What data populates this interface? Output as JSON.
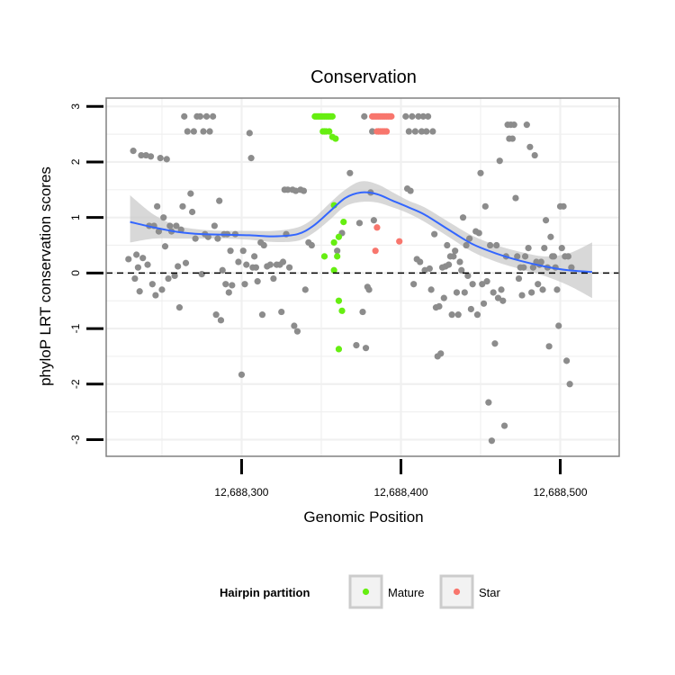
{
  "chart_data": {
    "type": "scatter",
    "title": "Conservation",
    "xlabel": "Genomic Position",
    "ylabel": "phyloP LRT conservation scores",
    "xlim": [
      12688215,
      12688537
    ],
    "ylim": [
      -3.3,
      3.15
    ],
    "x_ticks": [
      {
        "value": 12688300,
        "label": "12,688,300"
      },
      {
        "value": 12688400,
        "label": "12,688,400"
      },
      {
        "value": 12688500,
        "label": "12,688,500"
      }
    ],
    "y_ticks": [
      {
        "value": -3,
        "label": "-3"
      },
      {
        "value": -2,
        "label": "-2"
      },
      {
        "value": -1,
        "label": "-1"
      },
      {
        "value": 0,
        "label": "0"
      },
      {
        "value": 1,
        "label": "1"
      },
      {
        "value": 2,
        "label": "2"
      },
      {
        "value": 3,
        "label": "3"
      }
    ],
    "reference_line": {
      "y": 0,
      "style": "dashed",
      "color": "#000000"
    },
    "colors": {
      "other": "#8c8c8c",
      "Mature": "#66ee11",
      "Star": "#f8766d",
      "smooth": "#3366ff",
      "ribbon": "#c8c8c8",
      "grid": "#f0f0f0",
      "frame": "#808080"
    },
    "legend": {
      "title": "Hairpin partition",
      "entries": [
        "Mature",
        "Star"
      ],
      "position": "bottom"
    },
    "series": [
      {
        "name": "Other",
        "points": [
          [
            12688229,
            0.25
          ],
          [
            12688232,
            2.2
          ],
          [
            12688233,
            -0.1
          ],
          [
            12688234,
            0.33
          ],
          [
            12688235,
            0.1
          ],
          [
            12688236,
            -0.33
          ],
          [
            12688237,
            2.12
          ],
          [
            12688238,
            0.27
          ],
          [
            12688240,
            2.12
          ],
          [
            12688241,
            0.15
          ],
          [
            12688242,
            0.85
          ],
          [
            12688243,
            2.1
          ],
          [
            12688244,
            -0.2
          ],
          [
            12688245,
            0.85
          ],
          [
            12688246,
            -0.4
          ],
          [
            12688247,
            1.2
          ],
          [
            12688248,
            0.75
          ],
          [
            12688249,
            2.07
          ],
          [
            12688250,
            -0.3
          ],
          [
            12688251,
            1.0
          ],
          [
            12688252,
            0.48
          ],
          [
            12688253,
            2.05
          ],
          [
            12688254,
            -0.1
          ],
          [
            12688255,
            0.85
          ],
          [
            12688256,
            0.75
          ],
          [
            12688258,
            -0.05
          ],
          [
            12688259,
            0.85
          ],
          [
            12688260,
            0.12
          ],
          [
            12688261,
            -0.62
          ],
          [
            12688262,
            0.78
          ],
          [
            12688263,
            1.2
          ],
          [
            12688264,
            2.82
          ],
          [
            12688265,
            0.18
          ],
          [
            12688266,
            2.55
          ],
          [
            12688268,
            1.43
          ],
          [
            12688269,
            1.1
          ],
          [
            12688270,
            2.55
          ],
          [
            12688271,
            0.62
          ],
          [
            12688272,
            2.82
          ],
          [
            12688274,
            2.82
          ],
          [
            12688275,
            -0.02
          ],
          [
            12688276,
            2.55
          ],
          [
            12688277,
            0.7
          ],
          [
            12688278,
            2.82
          ],
          [
            12688279,
            0.65
          ],
          [
            12688280,
            2.55
          ],
          [
            12688282,
            2.82
          ],
          [
            12688283,
            0.85
          ],
          [
            12688284,
            -0.75
          ],
          [
            12688285,
            0.62
          ],
          [
            12688286,
            1.3
          ],
          [
            12688287,
            -0.85
          ],
          [
            12688288,
            0.05
          ],
          [
            12688289,
            0.7
          ],
          [
            12688290,
            -0.2
          ],
          [
            12688291,
            0.7
          ],
          [
            12688292,
            -0.35
          ],
          [
            12688293,
            0.4
          ],
          [
            12688294,
            -0.22
          ],
          [
            12688296,
            0.7
          ],
          [
            12688298,
            0.2
          ],
          [
            12688300,
            -1.83
          ],
          [
            12688301,
            0.4
          ],
          [
            12688302,
            -0.2
          ],
          [
            12688303,
            0.15
          ],
          [
            12688305,
            2.52
          ],
          [
            12688306,
            2.07
          ],
          [
            12688307,
            0.1
          ],
          [
            12688308,
            0.3
          ],
          [
            12688309,
            0.1
          ],
          [
            12688310,
            -0.15
          ],
          [
            12688312,
            0.55
          ],
          [
            12688313,
            -0.75
          ],
          [
            12688314,
            0.5
          ],
          [
            12688316,
            0.12
          ],
          [
            12688318,
            0.15
          ],
          [
            12688320,
            -0.1
          ],
          [
            12688322,
            0.15
          ],
          [
            12688324,
            0.15
          ],
          [
            12688325,
            -0.7
          ],
          [
            12688326,
            0.2
          ],
          [
            12688327,
            1.5
          ],
          [
            12688328,
            0.7
          ],
          [
            12688329,
            1.5
          ],
          [
            12688330,
            0.1
          ],
          [
            12688332,
            1.5
          ],
          [
            12688333,
            -0.95
          ],
          [
            12688334,
            1.48
          ],
          [
            12688335,
            -1.05
          ],
          [
            12688337,
            1.5
          ],
          [
            12688339,
            1.48
          ],
          [
            12688340,
            -0.3
          ],
          [
            12688342,
            0.55
          ],
          [
            12688344,
            0.5
          ],
          [
            12688360,
            0.4
          ],
          [
            12688363,
            0.72
          ],
          [
            12688368,
            1.8
          ],
          [
            12688372,
            -1.3
          ],
          [
            12688374,
            0.9
          ],
          [
            12688376,
            -0.7
          ],
          [
            12688377,
            2.82
          ],
          [
            12688378,
            -1.35
          ],
          [
            12688379,
            -0.25
          ],
          [
            12688380,
            -0.3
          ],
          [
            12688381,
            1.45
          ],
          [
            12688382,
            2.55
          ],
          [
            12688383,
            0.95
          ],
          [
            12688386,
            2.55
          ],
          [
            12688403,
            2.82
          ],
          [
            12688404,
            1.52
          ],
          [
            12688405,
            2.55
          ],
          [
            12688406,
            1.48
          ],
          [
            12688407,
            2.82
          ],
          [
            12688408,
            -0.2
          ],
          [
            12688409,
            2.55
          ],
          [
            12688410,
            0.25
          ],
          [
            12688411,
            2.82
          ],
          [
            12688412,
            0.2
          ],
          [
            12688413,
            2.55
          ],
          [
            12688414,
            2.82
          ],
          [
            12688415,
            0.05
          ],
          [
            12688416,
            2.55
          ],
          [
            12688417,
            2.82
          ],
          [
            12688418,
            0.08
          ],
          [
            12688419,
            -0.3
          ],
          [
            12688420,
            2.55
          ],
          [
            12688421,
            0.7
          ],
          [
            12688422,
            -0.62
          ],
          [
            12688423,
            -1.5
          ],
          [
            12688424,
            -0.6
          ],
          [
            12688425,
            -1.45
          ],
          [
            12688426,
            0.1
          ],
          [
            12688427,
            -0.45
          ],
          [
            12688428,
            0.12
          ],
          [
            12688429,
            0.5
          ],
          [
            12688430,
            0.15
          ],
          [
            12688431,
            0.3
          ],
          [
            12688432,
            -0.75
          ],
          [
            12688433,
            0.3
          ],
          [
            12688434,
            0.4
          ],
          [
            12688435,
            -0.35
          ],
          [
            12688436,
            -0.75
          ],
          [
            12688437,
            0.2
          ],
          [
            12688438,
            0.05
          ],
          [
            12688439,
            1.0
          ],
          [
            12688440,
            -0.35
          ],
          [
            12688441,
            0.5
          ],
          [
            12688442,
            -0.05
          ],
          [
            12688443,
            0.62
          ],
          [
            12688444,
            -0.65
          ],
          [
            12688445,
            -0.2
          ],
          [
            12688447,
            0.75
          ],
          [
            12688448,
            -0.75
          ],
          [
            12688449,
            0.72
          ],
          [
            12688450,
            1.8
          ],
          [
            12688451,
            -0.2
          ],
          [
            12688452,
            -0.55
          ],
          [
            12688453,
            1.2
          ],
          [
            12688454,
            -0.15
          ],
          [
            12688455,
            -2.33
          ],
          [
            12688456,
            0.5
          ],
          [
            12688457,
            -3.02
          ],
          [
            12688458,
            -0.35
          ],
          [
            12688459,
            -1.27
          ],
          [
            12688460,
            0.5
          ],
          [
            12688461,
            -0.45
          ],
          [
            12688462,
            2.02
          ],
          [
            12688463,
            -0.3
          ],
          [
            12688464,
            -0.5
          ],
          [
            12688465,
            -2.75
          ],
          [
            12688466,
            0.3
          ],
          [
            12688467,
            2.67
          ],
          [
            12688468,
            2.42
          ],
          [
            12688469,
            2.67
          ],
          [
            12688470,
            2.42
          ],
          [
            12688471,
            2.67
          ],
          [
            12688472,
            1.35
          ],
          [
            12688473,
            0.3
          ],
          [
            12688474,
            -0.1
          ],
          [
            12688475,
            0.1
          ],
          [
            12688476,
            -0.4
          ],
          [
            12688477,
            0.1
          ],
          [
            12688478,
            0.3
          ],
          [
            12688479,
            2.67
          ],
          [
            12688480,
            0.45
          ],
          [
            12688481,
            2.27
          ],
          [
            12688482,
            -0.35
          ],
          [
            12688483,
            0.1
          ],
          [
            12688484,
            2.12
          ],
          [
            12688485,
            0.2
          ],
          [
            12688486,
            -0.2
          ],
          [
            12688487,
            0.15
          ],
          [
            12688488,
            0.2
          ],
          [
            12688489,
            -0.3
          ],
          [
            12688490,
            0.45
          ],
          [
            12688491,
            0.95
          ],
          [
            12688492,
            0.1
          ],
          [
            12688493,
            -1.32
          ],
          [
            12688494,
            0.65
          ],
          [
            12688495,
            0.3
          ],
          [
            12688496,
            0.3
          ],
          [
            12688497,
            0.1
          ],
          [
            12688498,
            -0.3
          ],
          [
            12688499,
            -0.95
          ],
          [
            12688500,
            1.2
          ],
          [
            12688501,
            0.45
          ],
          [
            12688502,
            1.2
          ],
          [
            12688503,
            0.3
          ],
          [
            12688504,
            -1.58
          ],
          [
            12688505,
            0.3
          ],
          [
            12688506,
            -2.0
          ],
          [
            12688507,
            0.1
          ]
        ]
      },
      {
        "name": "Mature",
        "points": [
          [
            12688346,
            2.82
          ],
          [
            12688347,
            2.82
          ],
          [
            12688348,
            2.82
          ],
          [
            12688349,
            2.82
          ],
          [
            12688350,
            2.82
          ],
          [
            12688351,
            2.82
          ],
          [
            12688352,
            2.82
          ],
          [
            12688353,
            2.82
          ],
          [
            12688354,
            2.82
          ],
          [
            12688355,
            2.82
          ],
          [
            12688356,
            2.82
          ],
          [
            12688357,
            2.82
          ],
          [
            12688351,
            2.55
          ],
          [
            12688352,
            2.55
          ],
          [
            12688353,
            2.55
          ],
          [
            12688355,
            2.55
          ],
          [
            12688357,
            2.45
          ],
          [
            12688359,
            2.42
          ],
          [
            12688358,
            1.22
          ],
          [
            12688364,
            0.92
          ],
          [
            12688361,
            0.65
          ],
          [
            12688358,
            0.55
          ],
          [
            12688352,
            0.3
          ],
          [
            12688360,
            0.3
          ],
          [
            12688358,
            0.05
          ],
          [
            12688361,
            -0.5
          ],
          [
            12688363,
            -0.68
          ],
          [
            12688361,
            -1.37
          ]
        ]
      },
      {
        "name": "Star",
        "points": [
          [
            12688382,
            2.82
          ],
          [
            12688383,
            2.82
          ],
          [
            12688384,
            2.82
          ],
          [
            12688385,
            2.82
          ],
          [
            12688386,
            2.82
          ],
          [
            12688387,
            2.82
          ],
          [
            12688388,
            2.82
          ],
          [
            12688389,
            2.82
          ],
          [
            12688390,
            2.82
          ],
          [
            12688391,
            2.82
          ],
          [
            12688392,
            2.82
          ],
          [
            12688393,
            2.82
          ],
          [
            12688394,
            2.82
          ],
          [
            12688385,
            2.55
          ],
          [
            12688386,
            2.55
          ],
          [
            12688387,
            2.55
          ],
          [
            12688388,
            2.55
          ],
          [
            12688389,
            2.55
          ],
          [
            12688390,
            2.55
          ],
          [
            12688391,
            2.55
          ],
          [
            12688385,
            0.82
          ],
          [
            12688384,
            0.4
          ],
          [
            12688399,
            0.57
          ]
        ]
      }
    ],
    "smooth": {
      "method": "loess",
      "x": [
        12688230,
        12688245,
        12688260,
        12688275,
        12688290,
        12688305,
        12688320,
        12688335,
        12688345,
        12688355,
        12688365,
        12688375,
        12688385,
        12688395,
        12688405,
        12688415,
        12688430,
        12688445,
        12688460,
        12688475,
        12688490,
        12688505,
        12688520
      ],
      "y": [
        0.92,
        0.82,
        0.74,
        0.7,
        0.69,
        0.68,
        0.66,
        0.7,
        0.85,
        1.1,
        1.35,
        1.45,
        1.42,
        1.3,
        1.18,
        1.05,
        0.78,
        0.52,
        0.35,
        0.22,
        0.12,
        0.05,
        0.02
      ],
      "lower": [
        0.55,
        0.62,
        0.62,
        0.62,
        0.62,
        0.6,
        0.56,
        0.58,
        0.72,
        0.95,
        1.2,
        1.28,
        1.27,
        1.18,
        1.07,
        0.92,
        0.65,
        0.38,
        0.2,
        0.07,
        -0.05,
        -0.22,
        -0.45
      ],
      "upper": [
        1.4,
        1.05,
        0.85,
        0.78,
        0.76,
        0.76,
        0.76,
        0.82,
        0.98,
        1.25,
        1.5,
        1.65,
        1.6,
        1.45,
        1.3,
        1.18,
        0.92,
        0.67,
        0.5,
        0.38,
        0.3,
        0.35,
        0.55
      ]
    }
  }
}
